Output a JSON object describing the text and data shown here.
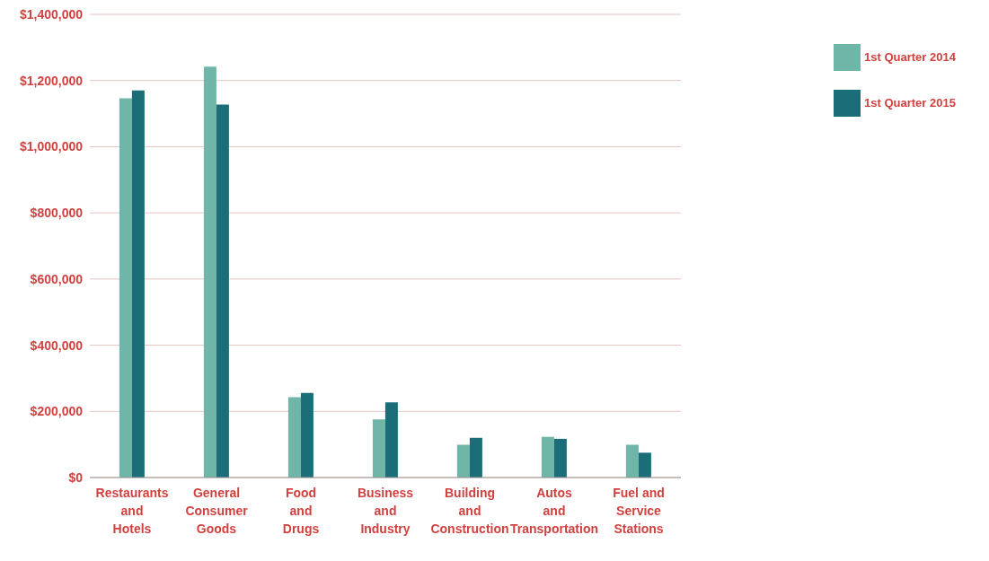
{
  "chart_data": {
    "type": "bar",
    "categories": [
      "Restaurants\nand\nHotels",
      "General\nConsumer\nGoods",
      "Food\nand\nDrugs",
      "Business\nand\nIndustry",
      "Building\nand\nConstruction",
      "Autos\nand\nTransportation",
      "Fuel and\nService\nStations"
    ],
    "series": [
      {
        "name": "1st Quarter 2014",
        "color": "#6fb5a8",
        "values": [
          1146000,
          1242000,
          243000,
          176000,
          99000,
          123000,
          99000
        ]
      },
      {
        "name": "1st Quarter 2015",
        "color": "#1b6e78",
        "values": [
          1170000,
          1127000,
          256000,
          227000,
          120000,
          117000,
          75000
        ]
      }
    ],
    "ylim": [
      0,
      1400000
    ],
    "yticks": [
      {
        "value": 0,
        "label": "$0"
      },
      {
        "value": 200000,
        "label": "$200,000"
      },
      {
        "value": 400000,
        "label": "$400,000"
      },
      {
        "value": 600000,
        "label": "$600,000"
      },
      {
        "value": 800000,
        "label": "$800,000"
      },
      {
        "value": 1000000,
        "label": "$1,000,000"
      },
      {
        "value": 1200000,
        "label": "$1,200,000"
      },
      {
        "value": 1400000,
        "label": "$1,400,000"
      }
    ],
    "grid": "y",
    "legend": "top right"
  }
}
